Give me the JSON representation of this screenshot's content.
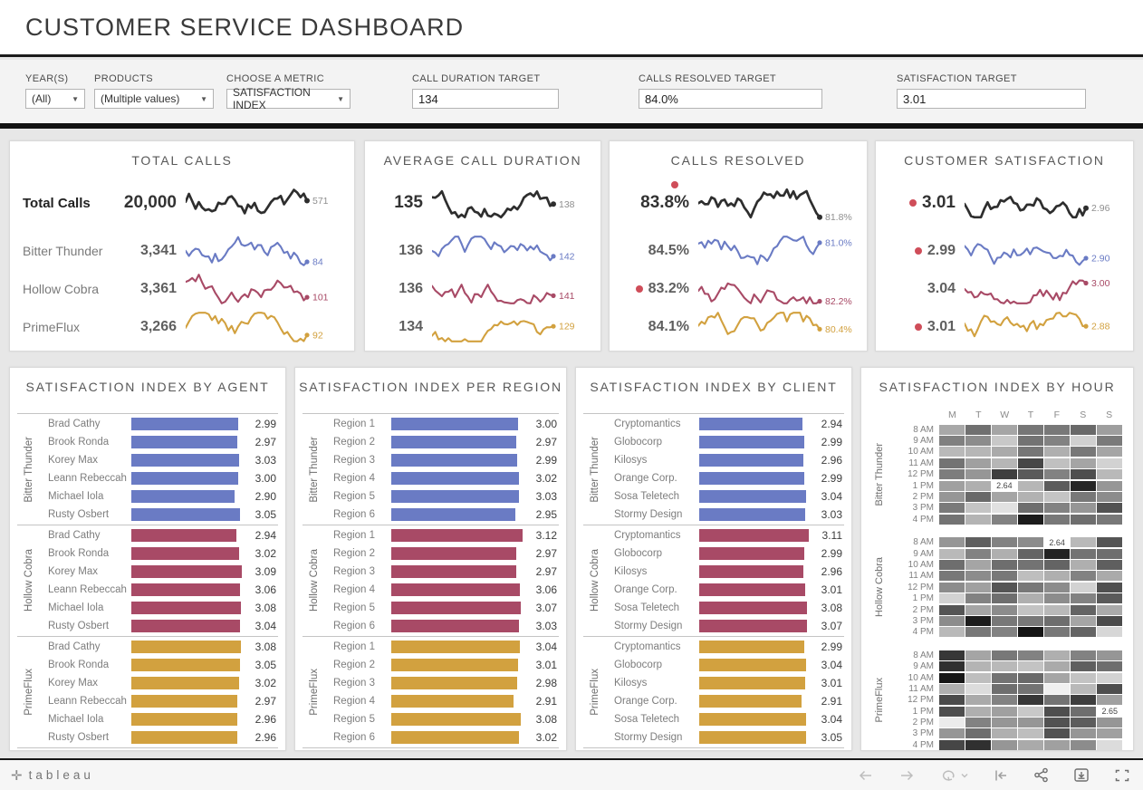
{
  "title": "CUSTOMER SERVICE DASHBOARD",
  "filter_bar": {
    "year": {
      "label": "YEAR(S)",
      "value": "(All)"
    },
    "products": {
      "label": "PRODUCTS",
      "value": "(Multiple values)"
    },
    "metric": {
      "label": "CHOOSE A METRIC",
      "value": "SATISFACTION INDEX"
    },
    "call_duration_target": {
      "label": "CALL DURATION TARGET",
      "value": "134"
    },
    "calls_resolved_target": {
      "label": "CALLS RESOLVED TARGET",
      "value": "84.0%"
    },
    "satisfaction_target": {
      "label": "SATISFACTION TARGET",
      "value": "3.01"
    }
  },
  "colors": {
    "black_series": "#2e2e2e",
    "black_series_label": "#8f8f8f",
    "blue": "#6a7bc4",
    "maroon": "#a84a66",
    "gold": "#d2a13f",
    "alert_red": "#cf4d59",
    "series_by_product": [
      "#6a7bc4",
      "#a84a66",
      "#d2a13f"
    ]
  },
  "kpi_panels": [
    {
      "title": "TOTAL CALLS",
      "has_labels": true,
      "rows": [
        {
          "label": "Total Calls",
          "value": "20,000",
          "end": "571"
        },
        {
          "label": "Bitter Thunder",
          "value": "3,341",
          "end": "84"
        },
        {
          "label": "Hollow Cobra",
          "value": "3,361",
          "end": "101"
        },
        {
          "label": "PrimeFlux",
          "value": "3,266",
          "end": "92"
        }
      ]
    },
    {
      "title": "AVERAGE CALL DURATION",
      "has_labels": false,
      "rows": [
        {
          "value": "135",
          "end": "138"
        },
        {
          "value": "136",
          "end": "142"
        },
        {
          "value": "136",
          "end": "141"
        },
        {
          "value": "134",
          "end": "129"
        }
      ]
    },
    {
      "title": "CALLS RESOLVED",
      "has_labels": false,
      "rows": [
        {
          "value": "83.8%",
          "end": "81.8%",
          "alert": "above"
        },
        {
          "value": "84.5%",
          "end": "81.0%"
        },
        {
          "value": "83.2%",
          "end": "82.2%",
          "alert": "left"
        },
        {
          "value": "84.1%",
          "end": "80.4%"
        }
      ]
    },
    {
      "title": "CUSTOMER SATISFACTION",
      "has_labels": false,
      "rows": [
        {
          "value": "3.01",
          "end": "2.96",
          "alert": "left"
        },
        {
          "value": "2.99",
          "end": "2.90",
          "alert": "left"
        },
        {
          "value": "3.04",
          "end": "3.00"
        },
        {
          "value": "3.01",
          "end": "2.88",
          "alert": "left"
        }
      ]
    }
  ],
  "chart_data": [
    {
      "type": "bar",
      "title": "SATISFACTION INDEX BY AGENT",
      "xlim": [
        0,
        3.2
      ],
      "groups": [
        {
          "name": "Bitter Thunder",
          "categories": [
            "Brad Cathy",
            "Brook Ronda",
            "Korey Max",
            "Leann Rebeccah",
            "Michael Iola",
            "Rusty Osbert"
          ],
          "values": [
            2.99,
            2.97,
            3.03,
            3.0,
            2.9,
            3.05
          ]
        },
        {
          "name": "Hollow Cobra",
          "categories": [
            "Brad Cathy",
            "Brook Ronda",
            "Korey Max",
            "Leann Rebeccah",
            "Michael Iola",
            "Rusty Osbert"
          ],
          "values": [
            2.94,
            3.02,
            3.09,
            3.06,
            3.08,
            3.04
          ]
        },
        {
          "name": "PrimeFlux",
          "categories": [
            "Brad Cathy",
            "Brook Ronda",
            "Korey Max",
            "Leann Rebeccah",
            "Michael Iola",
            "Rusty Osbert"
          ],
          "values": [
            3.08,
            3.05,
            3.02,
            2.97,
            2.96,
            2.96
          ]
        }
      ]
    },
    {
      "type": "bar",
      "title": "SATISFACTION INDEX PER REGION",
      "xlim": [
        0,
        3.2
      ],
      "groups": [
        {
          "name": "Bitter Thunder",
          "categories": [
            "Region 1",
            "Region 2",
            "Region 3",
            "Region 4",
            "Region 5",
            "Region 6"
          ],
          "values": [
            3.0,
            2.97,
            2.99,
            3.02,
            3.03,
            2.95
          ]
        },
        {
          "name": "Hollow Cobra",
          "categories": [
            "Region 1",
            "Region 2",
            "Region 3",
            "Region 4",
            "Region 5",
            "Region 6"
          ],
          "values": [
            3.12,
            2.97,
            2.97,
            3.06,
            3.07,
            3.03
          ]
        },
        {
          "name": "PrimeFlux",
          "categories": [
            "Region 1",
            "Region 2",
            "Region 3",
            "Region 4",
            "Region 5",
            "Region 6"
          ],
          "values": [
            3.04,
            3.01,
            2.98,
            2.91,
            3.08,
            3.02
          ]
        }
      ]
    },
    {
      "type": "bar",
      "title": "SATISFACTION INDEX BY CLIENT",
      "xlim": [
        0,
        3.2
      ],
      "groups": [
        {
          "name": "Bitter Thunder",
          "categories": [
            "Cryptomantics",
            "Globocorp",
            "Kilosys",
            "Orange Corp.",
            "Sosa Teletech",
            "Stormy Design"
          ],
          "values": [
            2.94,
            2.99,
            2.96,
            2.99,
            3.04,
            3.03
          ]
        },
        {
          "name": "Hollow Cobra",
          "categories": [
            "Cryptomantics",
            "Globocorp",
            "Kilosys",
            "Orange Corp.",
            "Sosa Teletech",
            "Stormy Design"
          ],
          "values": [
            3.11,
            2.99,
            2.96,
            3.01,
            3.08,
            3.07
          ]
        },
        {
          "name": "PrimeFlux",
          "categories": [
            "Cryptomantics",
            "Globocorp",
            "Kilosys",
            "Orange Corp.",
            "Sosa Teletech",
            "Stormy Design"
          ],
          "values": [
            2.99,
            3.04,
            3.01,
            2.91,
            3.04,
            3.05
          ]
        }
      ]
    },
    {
      "type": "heatmap",
      "title": "SATISFACTION INDEX BY HOUR",
      "columns": [
        "M",
        "T",
        "W",
        "T",
        "F",
        "S",
        "S"
      ],
      "row_labels": [
        "8 AM",
        "9 AM",
        "10 AM",
        "11 AM",
        "12 PM",
        "1 PM",
        "2 PM",
        "3 PM",
        "4 PM"
      ],
      "cell_encoding": "numbers are gray shades 0-255 (darker = lower satisfaction); string cells are annotated white cells showing the value",
      "groups": [
        {
          "name": "Bitter Thunder",
          "rows": [
            [
              168,
              112,
              165,
              118,
              120,
              105,
              158
            ],
            [
              128,
              140,
              200,
              115,
              130,
              208,
              122
            ],
            [
              185,
              182,
              170,
              118,
              175,
              120,
              165
            ],
            [
              115,
              160,
              182,
              70,
              192,
              165,
              210
            ],
            [
              125,
              150,
              62,
              90,
              130,
              78,
              185
            ],
            [
              160,
              175,
              "2.64",
              182,
              92,
              38,
              150
            ],
            [
              150,
              105,
              165,
              178,
              196,
              120,
              140
            ],
            [
              122,
              196,
              225,
              110,
              130,
              150,
              82
            ],
            [
              115,
              180,
              130,
              28,
              120,
              110,
              120
            ]
          ]
        },
        {
          "name": "Hollow Cobra",
          "rows": [
            [
              150,
              95,
              130,
              140,
              "2.64",
              185,
              85
            ],
            [
              185,
              130,
              175,
              100,
              35,
              115,
              110
            ],
            [
              110,
              165,
              110,
              115,
              100,
              175,
              95
            ],
            [
              120,
              140,
              120,
              190,
              175,
              130,
              170
            ],
            [
              140,
              160,
              85,
              120,
              140,
              210,
              80
            ],
            [
              210,
              130,
              110,
              175,
              140,
              130,
              90
            ],
            [
              85,
              165,
              140,
              195,
              185,
              100,
              170
            ],
            [
              140,
              28,
              120,
              120,
              110,
              165,
              75
            ],
            [
              185,
              120,
              130,
              22,
              120,
              100,
              215
            ]
          ]
        },
        {
          "name": "PrimeFlux",
          "rows": [
            [
              55,
              165,
              120,
              130,
              175,
              130,
              150
            ],
            [
              48,
              180,
              185,
              195,
              170,
              95,
              110
            ],
            [
              22,
              190,
              115,
              105,
              165,
              195,
              210
            ],
            [
              175,
              220,
              110,
              115,
              240,
              185,
              78
            ],
            [
              75,
              170,
              130,
              55,
              115,
              62,
              160
            ],
            [
              78,
              175,
              160,
              200,
              78,
              110,
              "2.65"
            ],
            [
              235,
              130,
              150,
              150,
              82,
              92,
              150
            ],
            [
              150,
              110,
              175,
              190,
              82,
              150,
              160
            ],
            [
              70,
              48,
              150,
              170,
              160,
              140,
              220
            ]
          ]
        }
      ]
    }
  ],
  "footer": {
    "logo": "tableau",
    "icons": [
      "undo",
      "redo",
      "replay",
      "replay-caret",
      "revert",
      "share",
      "download",
      "full-screen"
    ]
  }
}
